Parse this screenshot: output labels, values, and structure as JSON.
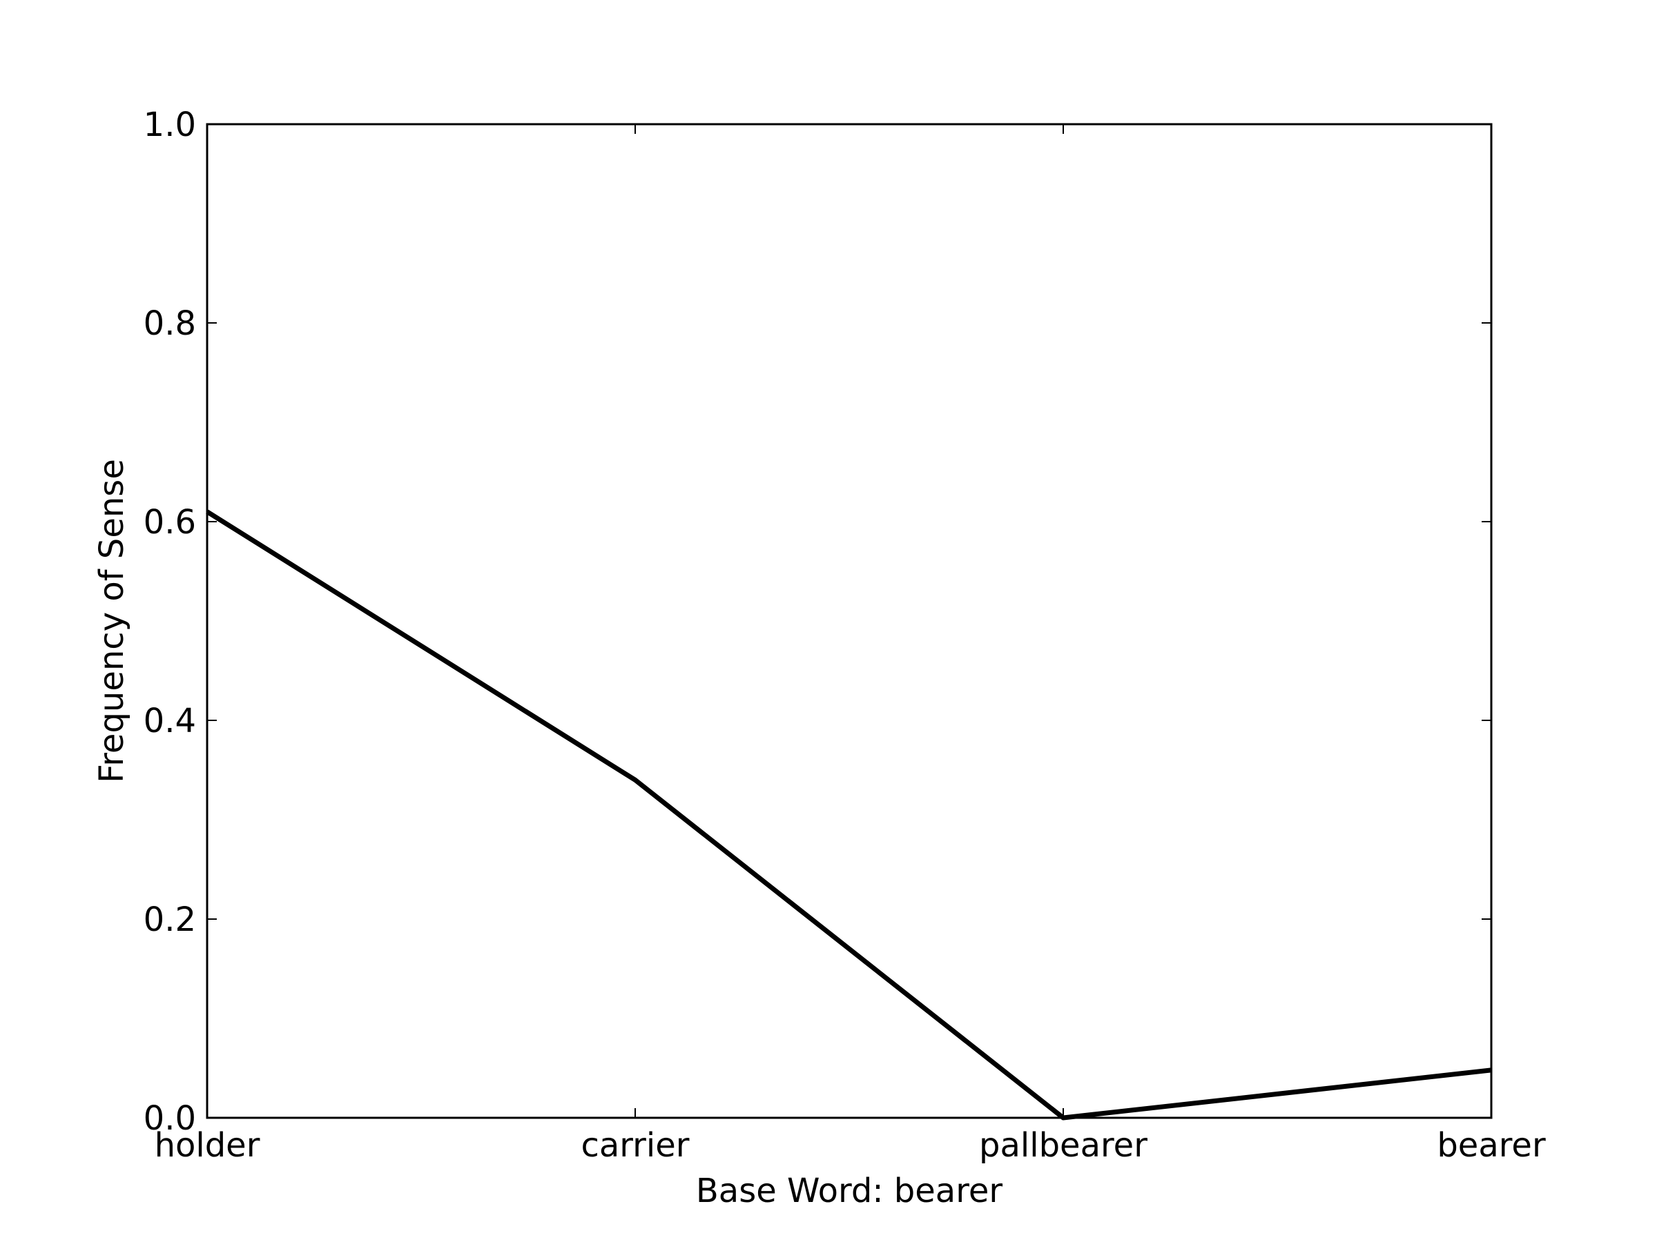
{
  "chart_data": {
    "type": "line",
    "title": "",
    "xlabel": "Base Word: bearer",
    "ylabel": "Frequency of Sense",
    "categories": [
      "holder",
      "carrier",
      "pallbearer",
      "bearer"
    ],
    "series": [
      {
        "values": [
          0.61,
          0.34,
          0.0,
          0.048
        ]
      }
    ],
    "ylim": [
      0.0,
      1.0
    ],
    "yticks": [
      0.0,
      0.2,
      0.4,
      0.6,
      0.8,
      1.0
    ],
    "ytick_labels": [
      "0.0",
      "0.2",
      "0.4",
      "0.6",
      "0.8",
      "1.0"
    ],
    "grid": false,
    "legend": "none",
    "line_color": "#000000"
  }
}
